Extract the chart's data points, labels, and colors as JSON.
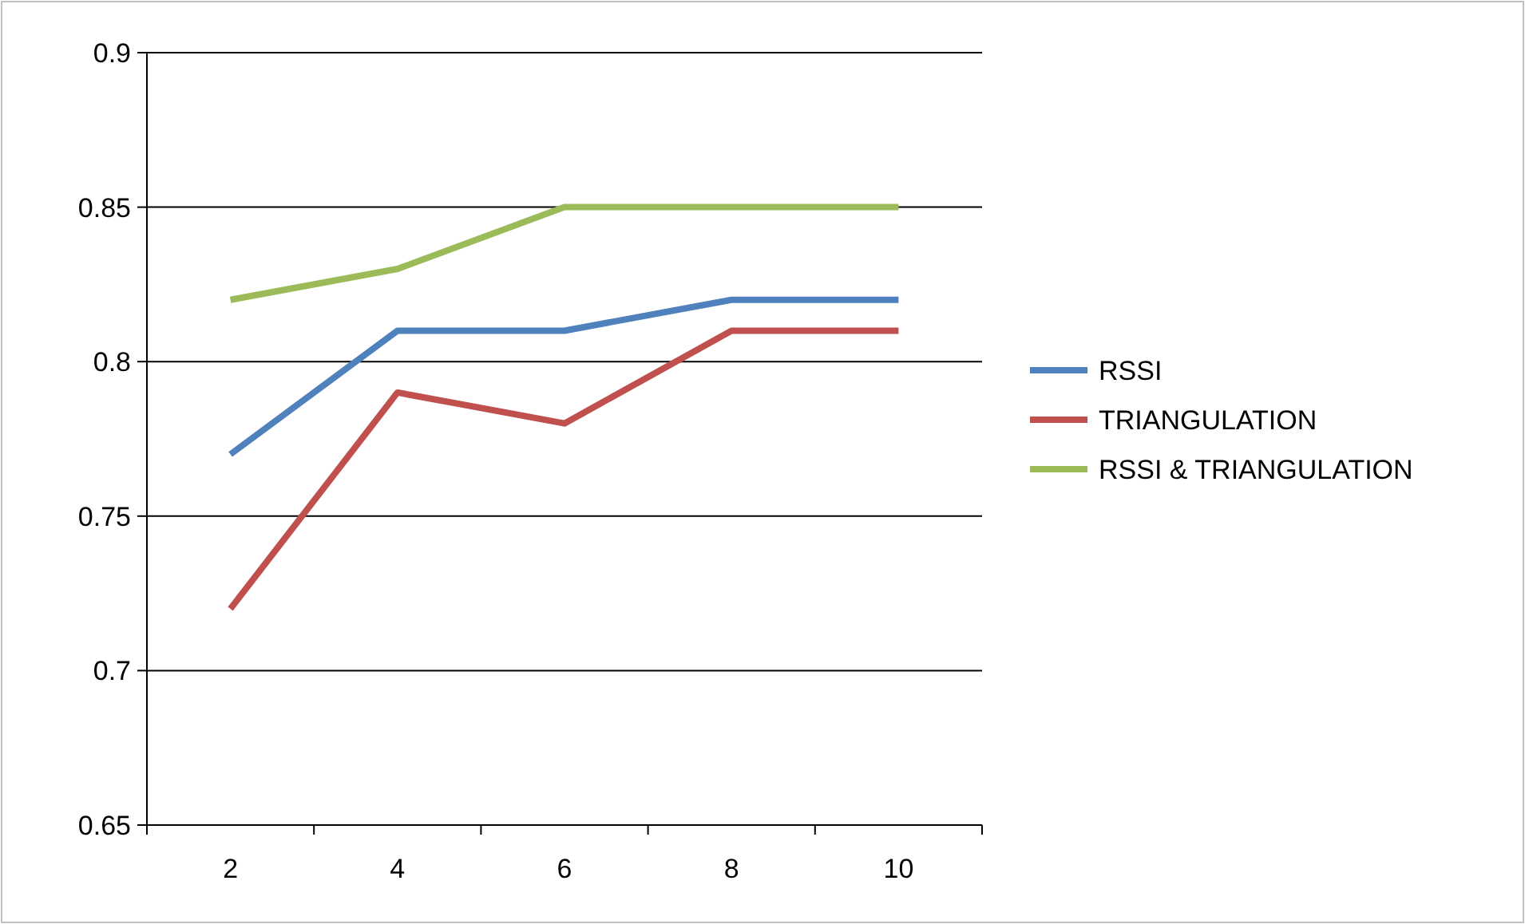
{
  "chart_data": {
    "type": "line",
    "categories": [
      "2",
      "4",
      "6",
      "8",
      "10"
    ],
    "series": [
      {
        "name": "RSSI",
        "color": "#4f81bd",
        "values": [
          0.77,
          0.81,
          0.81,
          0.82,
          0.82
        ]
      },
      {
        "name": "TRIANGULATION",
        "color": "#c0504d",
        "values": [
          0.72,
          0.79,
          0.78,
          0.81,
          0.81
        ]
      },
      {
        "name": "RSSI & TRIANGULATION",
        "color": "#9bbb59",
        "values": [
          0.82,
          0.83,
          0.85,
          0.85,
          0.85
        ]
      }
    ],
    "ylim": [
      0.65,
      0.9
    ],
    "yticks": [
      0.65,
      0.7,
      0.75,
      0.8,
      0.85,
      0.9
    ],
    "grid": "y",
    "legend": "right",
    "marker": "none",
    "line_style": "solid"
  }
}
